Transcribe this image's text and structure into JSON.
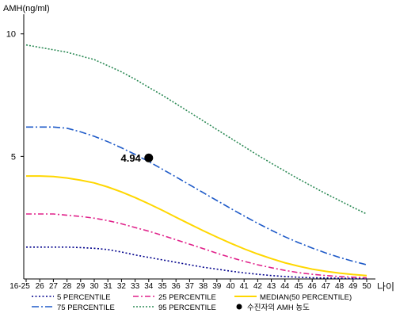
{
  "chart_data": {
    "type": "line",
    "ylabel": "AMH(ng/ml)",
    "xlabel": "나이",
    "ylim": [
      0,
      10.8
    ],
    "yticks": [
      5,
      10
    ],
    "x": [
      "16-25",
      "26",
      "27",
      "28",
      "29",
      "30",
      "31",
      "32",
      "33",
      "34",
      "35",
      "36",
      "37",
      "38",
      "39",
      "40",
      "41",
      "42",
      "43",
      "44",
      "45",
      "46",
      "47",
      "48",
      "49",
      "50"
    ],
    "series": [
      {
        "name": "5 PERCENTILE",
        "color": "#00008b",
        "dash": "2,2.5",
        "values": [
          1.3,
          1.3,
          1.3,
          1.3,
          1.28,
          1.25,
          1.2,
          1.1,
          0.98,
          0.88,
          0.78,
          0.68,
          0.58,
          0.48,
          0.4,
          0.32,
          0.25,
          0.19,
          0.14,
          0.1,
          0.07,
          0.05,
          0.04,
          0.03,
          0.02,
          0.02
        ]
      },
      {
        "name": "25 PERCENTILE",
        "color": "#e0218a",
        "dash": "7,3,2,3",
        "values": [
          2.65,
          2.65,
          2.65,
          2.6,
          2.55,
          2.48,
          2.38,
          2.25,
          2.1,
          1.95,
          1.78,
          1.6,
          1.42,
          1.24,
          1.05,
          0.88,
          0.72,
          0.58,
          0.46,
          0.35,
          0.26,
          0.19,
          0.14,
          0.1,
          0.07,
          0.05
        ]
      },
      {
        "name": "MEDIAN(50 PERCENTILE)",
        "color": "#ffd700",
        "dash": "",
        "values": [
          4.2,
          4.2,
          4.18,
          4.12,
          4.03,
          3.92,
          3.75,
          3.55,
          3.32,
          3.07,
          2.8,
          2.52,
          2.24,
          1.97,
          1.71,
          1.46,
          1.23,
          1.02,
          0.83,
          0.66,
          0.52,
          0.4,
          0.31,
          0.24,
          0.18,
          0.14
        ]
      },
      {
        "name": "75 PERCENTILE",
        "color": "#1e5ac8",
        "dash": "9,3,2,3",
        "values": [
          6.2,
          6.2,
          6.2,
          6.15,
          6.0,
          5.82,
          5.6,
          5.35,
          5.08,
          4.79,
          4.48,
          4.16,
          3.84,
          3.52,
          3.2,
          2.88,
          2.57,
          2.27,
          1.99,
          1.72,
          1.48,
          1.26,
          1.06,
          0.88,
          0.72,
          0.58
        ]
      },
      {
        "name": "95 PERCENTILE",
        "color": "#2e8b57",
        "dash": "2,2",
        "values": [
          9.55,
          9.45,
          9.35,
          9.25,
          9.1,
          8.95,
          8.7,
          8.45,
          8.15,
          7.82,
          7.5,
          7.15,
          6.8,
          6.45,
          6.1,
          5.75,
          5.4,
          5.05,
          4.72,
          4.4,
          4.08,
          3.78,
          3.48,
          3.2,
          2.92,
          2.65
        ]
      }
    ],
    "marker": {
      "name": "수진자의 AMH 농도",
      "x": "34",
      "y": 4.94,
      "label": "4.94",
      "color": "#000000"
    },
    "legend": {
      "placement": "bottom",
      "rows": [
        [
          "5 PERCENTILE",
          "25 PERCENTILE",
          "MEDIAN(50 PERCENTILE)"
        ],
        [
          "75 PERCENTILE",
          "95 PERCENTILE",
          "수진자의 AMH 농도"
        ]
      ]
    },
    "grid": false
  }
}
